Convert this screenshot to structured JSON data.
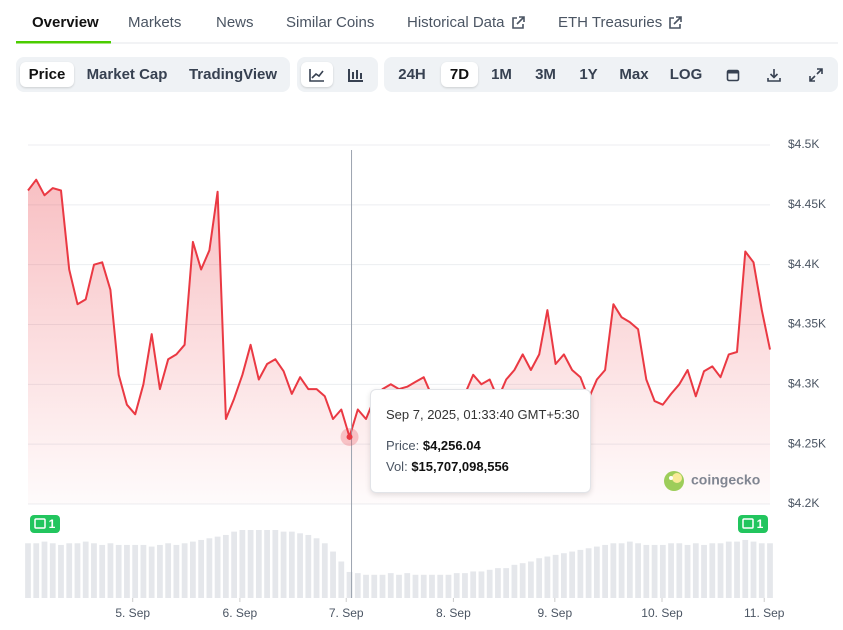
{
  "tabs": [
    "Overview",
    "Markets",
    "News",
    "Similar Coins",
    "Historical Data",
    "ETH Treasuries"
  ],
  "chart_modes": [
    "Price",
    "Market Cap",
    "TradingView"
  ],
  "ranges": [
    "24H",
    "7D",
    "1M",
    "3M",
    "1Y",
    "Max",
    "LOG"
  ],
  "badges": [
    "1",
    "1"
  ],
  "watermark": "coingecko",
  "tooltip": {
    "date": "Sep 7, 2025, 01:33:40 GMT+5:30",
    "price_label": "Price:",
    "price": "$4,256.04",
    "vol_label": "Vol:",
    "vol": "$15,707,098,556"
  },
  "chart_data": {
    "type": "line",
    "color": "#ea3943",
    "xlim": [
      0,
      90
    ],
    "xticks": [
      {
        "value": 12.7,
        "label": "5. Sep"
      },
      {
        "value": 25.7,
        "label": "6. Sep"
      },
      {
        "value": 38.6,
        "label": "7. Sep"
      },
      {
        "value": 51.6,
        "label": "8. Sep"
      },
      {
        "value": 63.9,
        "label": "9. Sep"
      },
      {
        "value": 76.9,
        "label": "10. Sep"
      },
      {
        "value": 89.3,
        "label": "11. Sep"
      }
    ],
    "ylim": [
      4200,
      4500
    ],
    "yticks": [
      {
        "value": 4200,
        "label": "$4.2K"
      },
      {
        "value": 4250,
        "label": "$4.25K"
      },
      {
        "value": 4300,
        "label": "$4.3K"
      },
      {
        "value": 4350,
        "label": "$4.35K"
      },
      {
        "value": 4400,
        "label": "$4.4K"
      },
      {
        "value": 4450,
        "label": "$4.45K"
      },
      {
        "value": 4500,
        "label": "$4.5K"
      }
    ],
    "grid": true,
    "values": [
      4462,
      4471,
      4458,
      4464,
      4462,
      4396,
      4367,
      4371,
      4400,
      4402,
      4379,
      4308,
      4283,
      4275,
      4300,
      4342,
      4296,
      4321,
      4325,
      4333,
      4419,
      4396,
      4412,
      4461,
      4271,
      4288,
      4308,
      4333,
      4304,
      4317,
      4321,
      4311,
      4292,
      4306,
      4296,
      4296,
      4290,
      4271,
      4279,
      4256.04,
      4279,
      4271,
      4288,
      4296,
      4300,
      4296,
      4298,
      4302,
      4306,
      4290,
      4292,
      4288,
      4290,
      4292,
      4308,
      4300,
      4304,
      4288,
      4304,
      4312,
      4325,
      4312,
      4325,
      4362,
      4317,
      4325,
      4312,
      4306,
      4288,
      4304,
      4312,
      4367,
      4356,
      4352,
      4346,
      4304,
      4286,
      4283,
      4292,
      4300,
      4312,
      4290,
      4311,
      4315,
      4306,
      4325,
      4327,
      4411,
      4402,
      4362,
      4329
    ],
    "volume": [
      33000000000.0,
      33000000000.0,
      34000000000.0,
      33000000000.0,
      32000000000.0,
      33000000000.0,
      33000000000.0,
      34000000000.0,
      33000000000.0,
      32000000000.0,
      33000000000.0,
      32000000000.0,
      32000000000.0,
      32000000000.0,
      32000000000.0,
      31000000000.0,
      32000000000.0,
      33000000000.0,
      32000000000.0,
      33000000000.0,
      34000000000.0,
      35000000000.0,
      36000000000.0,
      37000000000.0,
      38000000000.0,
      40000000000.0,
      41000000000.0,
      41000000000.0,
      41000000000.0,
      41000000000.0,
      41000000000.0,
      40000000000.0,
      40000000000.0,
      39000000000.0,
      38000000000.0,
      36000000000.0,
      33000000000.0,
      28000000000.0,
      22000000000.0,
      15707098556.0,
      15000000000.0,
      14000000000.0,
      14000000000.0,
      14000000000.0,
      15000000000.0,
      14000000000.0,
      15000000000.0,
      14000000000.0,
      14000000000.0,
      14000000000.0,
      14000000000.0,
      14000000000.0,
      15000000000.0,
      15000000000.0,
      16000000000.0,
      16000000000.0,
      17000000000.0,
      18000000000.0,
      18000000000.0,
      20000000000.0,
      21000000000.0,
      22000000000.0,
      24000000000.0,
      25000000000.0,
      26000000000.0,
      27000000000.0,
      28000000000.0,
      29000000000.0,
      30000000000.0,
      31000000000.0,
      32000000000.0,
      33000000000.0,
      33000000000.0,
      34000000000.0,
      33000000000.0,
      32000000000.0,
      32000000000.0,
      32000000000.0,
      33000000000.0,
      33000000000.0,
      32000000000.0,
      33000000000.0,
      32000000000.0,
      33000000000.0,
      33000000000.0,
      34000000000.0,
      34000000000.0,
      35000000000.0,
      34000000000.0,
      33000000000.0,
      33000000000.0
    ]
  }
}
